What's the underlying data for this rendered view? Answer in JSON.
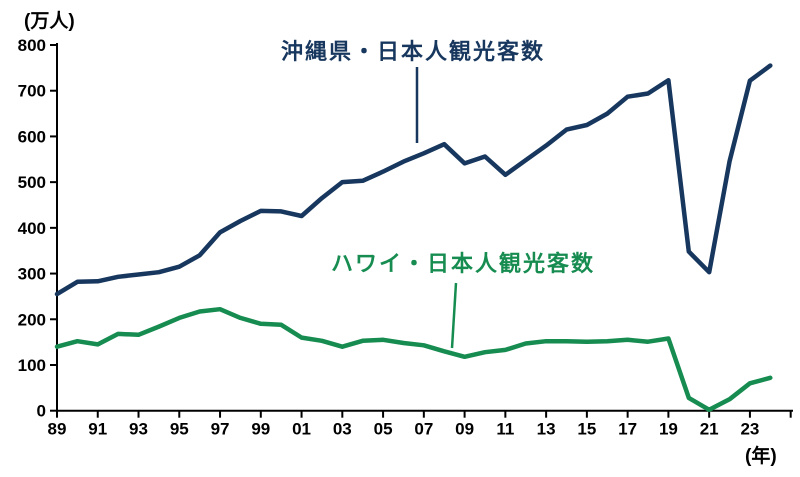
{
  "chart_data": {
    "type": "line",
    "title": "",
    "unit_y": "(万人)",
    "unit_x": "(年)",
    "ylim": [
      0,
      800
    ],
    "y_ticks": [
      0,
      100,
      200,
      300,
      400,
      500,
      600,
      700,
      800
    ],
    "x_tick_labels": [
      "89",
      "91",
      "93",
      "95",
      "97",
      "99",
      "01",
      "03",
      "05",
      "07",
      "09",
      "11",
      "13",
      "15",
      "17",
      "19",
      "21",
      "23"
    ],
    "grid": false,
    "legend_position": "inline-annotations",
    "years": [
      1989,
      1990,
      1991,
      1992,
      1993,
      1994,
      1995,
      1996,
      1997,
      1998,
      1999,
      2000,
      2001,
      2002,
      2003,
      2004,
      2005,
      2006,
      2007,
      2008,
      2009,
      2010,
      2011,
      2012,
      2013,
      2014,
      2015,
      2016,
      2017,
      2018,
      2019,
      2020,
      2021,
      2022,
      2023,
      2024
    ],
    "series": [
      {
        "name": "沖縄県・日本人観光客数",
        "color": "#17375e",
        "values": [
          255,
          282,
          283,
          293,
          298,
          303,
          315,
          340,
          390,
          415,
          437,
          436,
          426,
          465,
          500,
          503,
          523,
          545,
          563,
          583,
          541,
          556,
          516,
          548,
          580,
          615,
          625,
          650,
          687,
          694,
          723,
          348,
          303,
          545,
          722,
          755
        ]
      },
      {
        "name": "ハワイ・日本人観光客数",
        "color": "#168c50",
        "values": [
          140,
          152,
          145,
          168,
          166,
          184,
          203,
          217,
          222,
          203,
          190,
          188,
          160,
          153,
          140,
          153,
          155,
          148,
          143,
          130,
          118,
          128,
          133,
          147,
          152,
          152,
          151,
          152,
          155,
          151,
          158,
          28,
          2,
          25,
          60,
          72
        ]
      }
    ],
    "axis_color": "#000000"
  }
}
